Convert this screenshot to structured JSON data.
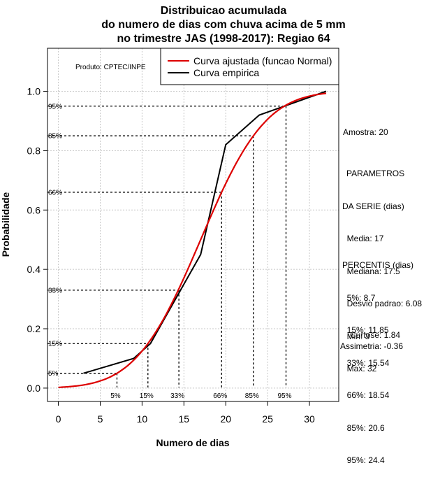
{
  "chart_data": {
    "type": "line",
    "title_lines": [
      "Distribuicao acumulada",
      "do numero de dias com chuva acima de 5 mm",
      "no trimestre JAS (1998-2017): Regiao 64"
    ],
    "xlabel": "Numero de dias",
    "ylabel": "Probabilidade",
    "xlim": [
      -1.3,
      33.5
    ],
    "ylim": [
      -0.045,
      1.145
    ],
    "x_ticks": [
      0,
      5,
      10,
      15,
      20,
      25,
      30
    ],
    "y_ticks": [
      0.0,
      0.2,
      0.4,
      0.6,
      0.8,
      1.0
    ],
    "y_tick_labels": [
      "0.0",
      "0.2",
      "0.4",
      "0.6",
      "0.8",
      "1.0"
    ],
    "produto": "Produto: CPTEC/INPE",
    "legend": [
      {
        "label": "Curva ajustada (funcao Normal)",
        "color": "#dd0000"
      },
      {
        "label": "Curva empirica",
        "color": "#000000"
      }
    ],
    "fitted": {
      "name": "Curva ajustada (funcao Normal)",
      "mean": 17,
      "sd": 6.08,
      "x_from": 0,
      "x_to": 32,
      "color": "#dd0000"
    },
    "series": [
      {
        "name": "Curva empirica",
        "color": "#000000",
        "x": [
          3,
          9,
          11,
          14,
          17,
          20,
          24,
          27,
          32
        ],
        "y": [
          0.05,
          0.1,
          0.15,
          0.3,
          0.45,
          0.82,
          0.92,
          0.95,
          1.0
        ]
      }
    ],
    "percentile_lines": [
      {
        "label": "5%",
        "x": 7,
        "p": 0.05
      },
      {
        "label": "15%",
        "x": 10.7,
        "p": 0.15
      },
      {
        "label": "33%",
        "x": 14.4,
        "p": 0.33
      },
      {
        "label": "66%",
        "x": 19.5,
        "p": 0.66
      },
      {
        "label": "85%",
        "x": 23.3,
        "p": 0.85
      },
      {
        "label": "95%",
        "x": 27.2,
        "p": 0.95
      }
    ]
  },
  "stats": {
    "amostra": "Amostra: 20",
    "parametros": [
      "PARAMETROS",
      "DA SERIE (dias)",
      "  Media: 17",
      "  Mediana: 17.5",
      "  Desvio padrao: 6.08",
      "  Min: 3",
      "  Max: 32"
    ],
    "percentis": [
      "PERCENTIS (dias)",
      "  5%: 8.7",
      "  15%: 11.85",
      "  33%: 15.54",
      "  66%: 18.54",
      "  85%: 20.6",
      "  95%: 24.4"
    ],
    "curtose": "Curtose: 1.84",
    "assimetria": "Assimetria: -0.36"
  }
}
